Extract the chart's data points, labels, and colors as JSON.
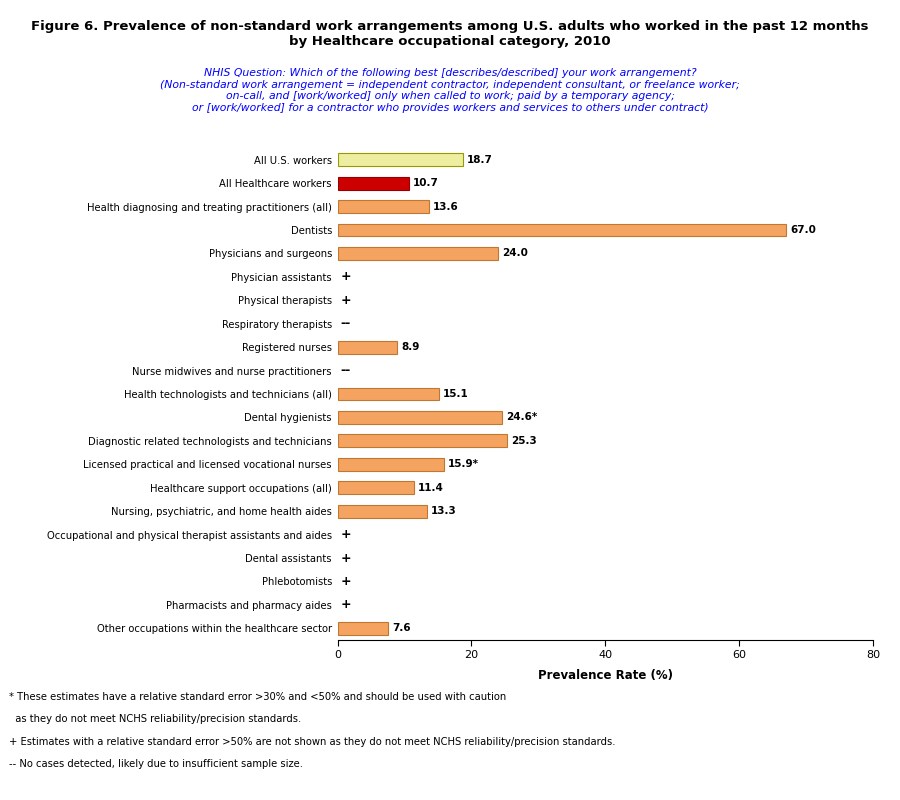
{
  "title": "Figure 6. Prevalence of non-standard work arrangements among U.S. adults who worked in the past 12 months\nby Healthcare occupational category, 2010",
  "subtitle_lines": [
    "NHIS Question: Which of the following best [describes/described] your work arrangement?",
    "(Non-standard work arrangement = independent contractor, independent consultant, or freelance worker;",
    "on-call, and [work/worked] only when called to work; paid by a temporary agency;",
    "or [work/worked] for a contractor who provides workers and services to others under contract)"
  ],
  "xlabel": "Prevalence Rate (%)",
  "categories": [
    "Other occupations within the healthcare sector",
    "Pharmacists and pharmacy aides",
    "Phlebotomists",
    "Dental assistants",
    "Occupational and physical therapist assistants and aides",
    "Nursing, psychiatric, and home health aides",
    "Healthcare support occupations (all)",
    "Licensed practical and licensed vocational nurses",
    "Diagnostic related technologists and technicians",
    "Dental hygienists",
    "Health technologists and technicians (all)",
    "Nurse midwives and nurse practitioners",
    "Registered nurses",
    "Respiratory therapists",
    "Physical therapists",
    "Physician assistants",
    "Physicians and surgeons",
    "Dentists",
    "Health diagnosing and treating practitioners (all)",
    "All Healthcare workers",
    "All U.S. workers"
  ],
  "values": [
    7.6,
    null,
    null,
    null,
    null,
    13.3,
    11.4,
    15.9,
    25.3,
    24.6,
    15.1,
    null,
    8.9,
    null,
    null,
    null,
    24.0,
    67.0,
    13.6,
    10.7,
    18.7
  ],
  "special_labels": {
    "Pharmacists and pharmacy aides": "+",
    "Phlebotomists": "+",
    "Dental assistants": "+",
    "Occupational and physical therapist assistants and aides": "+",
    "Nurse midwives and nurse practitioners": "--",
    "Respiratory therapists": "--",
    "Physical therapists": "+",
    "Physician assistants": "+"
  },
  "value_labels": {
    "Other occupations within the healthcare sector": "7.6",
    "Nursing, psychiatric, and home health aides": "13.3",
    "Healthcare support occupations (all)": "11.4",
    "Licensed practical and licensed vocational nurses": "15.9*",
    "Diagnostic related technologists and technicians": "25.3",
    "Dental hygienists": "24.6*",
    "Health technologists and technicians (all)": "15.1",
    "Registered nurses": "8.9",
    "Physicians and surgeons": "24.0",
    "Dentists": "67.0",
    "Health diagnosing and treating practitioners (all)": "13.6",
    "All Healthcare workers": "10.7",
    "All U.S. workers": "18.7"
  },
  "bar_colors": {
    "All U.S. workers": "#eeeea0",
    "All Healthcare workers": "#cc0000",
    "default": "#f4a460"
  },
  "bar_edgecolors": {
    "All U.S. workers": "#999900",
    "All Healthcare workers": "#990000",
    "default": "#c07830"
  },
  "xlim": [
    0,
    80
  ],
  "xticks": [
    0,
    20,
    40,
    60,
    80
  ],
  "footnotes": [
    "* These estimates have a relative standard error >30% and <50% and should be used with caution",
    "  as they do not meet NCHS reliability/precision standards.",
    "+ Estimates with a relative standard error >50% are not shown as they do not meet NCHS reliability/precision standards.",
    "-- No cases detected, likely due to insufficient sample size."
  ]
}
